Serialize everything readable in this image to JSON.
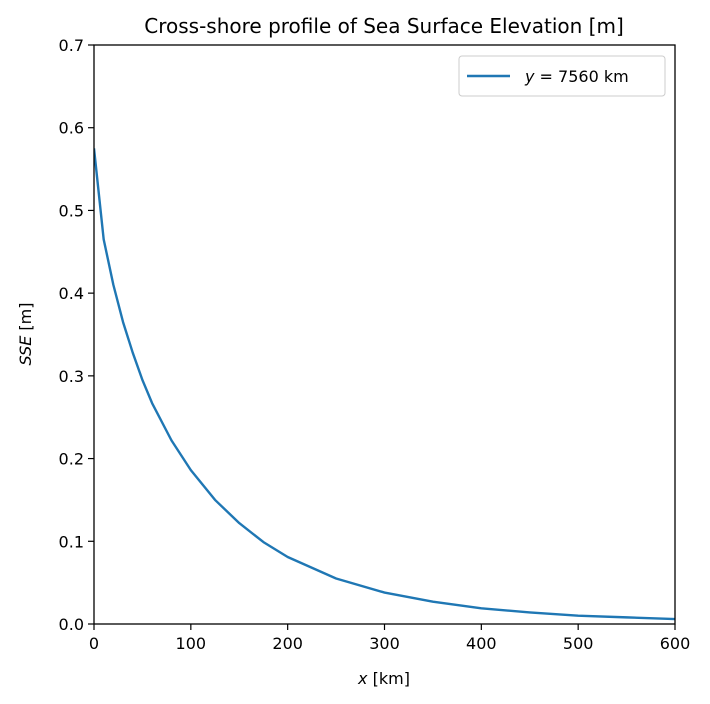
{
  "chart_data": {
    "type": "line",
    "title": "Cross-shore profile of Sea Surface Elevation [m]",
    "xlabel": {
      "var": "x",
      "unit": "[km]"
    },
    "ylabel": {
      "var": "SSE",
      "unit": "[m]"
    },
    "xlim": [
      0,
      600
    ],
    "ylim": [
      0,
      0.7
    ],
    "xticks": [
      0,
      100,
      200,
      300,
      400,
      500,
      600
    ],
    "xtick_labels": [
      "0",
      "100",
      "200",
      "300",
      "400",
      "500",
      "600"
    ],
    "yticks": [
      0.0,
      0.1,
      0.2,
      0.3,
      0.4,
      0.5,
      0.6,
      0.7
    ],
    "ytick_labels": [
      "0.0",
      "0.1",
      "0.2",
      "0.3",
      "0.4",
      "0.5",
      "0.6",
      "0.7"
    ],
    "grid": false,
    "legend_position": "top-right",
    "series": [
      {
        "name": "y = 7560 km",
        "legend": {
          "var": "y",
          "rest": " = 7560 km"
        },
        "color": "#1f77b4",
        "x": [
          0,
          10,
          20,
          30,
          40,
          50,
          60,
          80,
          100,
          125,
          150,
          175,
          200,
          250,
          300,
          350,
          400,
          450,
          500,
          550,
          600
        ],
        "y": [
          0.575,
          0.465,
          0.41,
          0.365,
          0.328,
          0.295,
          0.267,
          0.222,
          0.186,
          0.15,
          0.122,
          0.099,
          0.081,
          0.055,
          0.038,
          0.027,
          0.019,
          0.014,
          0.01,
          0.008,
          0.006
        ]
      }
    ]
  }
}
